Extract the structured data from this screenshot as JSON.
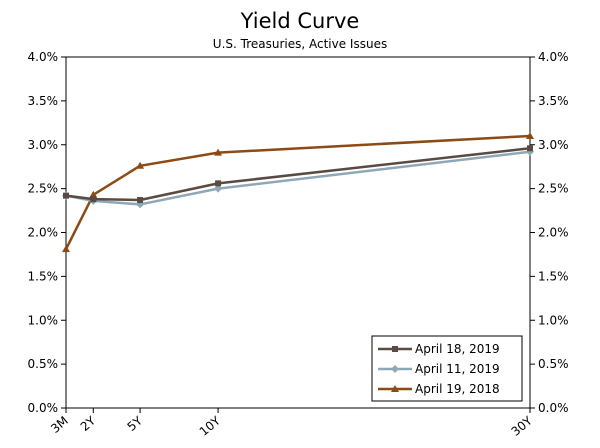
{
  "chart_data": {
    "type": "line",
    "title": "Yield Curve",
    "subtitle": "U.S. Treasuries, Active Issues",
    "xlabel": "",
    "ylabel": "",
    "categories": [
      "3M",
      "2Y",
      "5Y",
      "10Y",
      "30Y"
    ],
    "x": [
      0.25,
      2,
      5,
      10,
      30
    ],
    "xlim": [
      0.25,
      30
    ],
    "ylim": [
      0,
      4.0
    ],
    "y_ticks": [
      "0.0%",
      "0.5%",
      "1.0%",
      "1.5%",
      "2.0%",
      "2.5%",
      "3.0%",
      "3.5%",
      "4.0%"
    ],
    "y_tick_values": [
      0,
      0.5,
      1.0,
      1.5,
      2.0,
      2.5,
      3.0,
      3.5,
      4.0
    ],
    "y_axis_right": true,
    "grid": false,
    "legend_position": "bottom-right",
    "series": [
      {
        "name": "April 18, 2019",
        "values": [
          2.42,
          2.38,
          2.37,
          2.56,
          2.96
        ],
        "color": "#594a42",
        "marker": "square"
      },
      {
        "name": "April 11, 2019",
        "values": [
          2.42,
          2.36,
          2.32,
          2.5,
          2.92
        ],
        "color": "#8fa8b8",
        "marker": "diamond"
      },
      {
        "name": "April 19, 2018",
        "values": [
          1.81,
          2.43,
          2.76,
          2.91,
          3.1
        ],
        "color": "#8c4a14",
        "marker": "triangle"
      }
    ]
  }
}
